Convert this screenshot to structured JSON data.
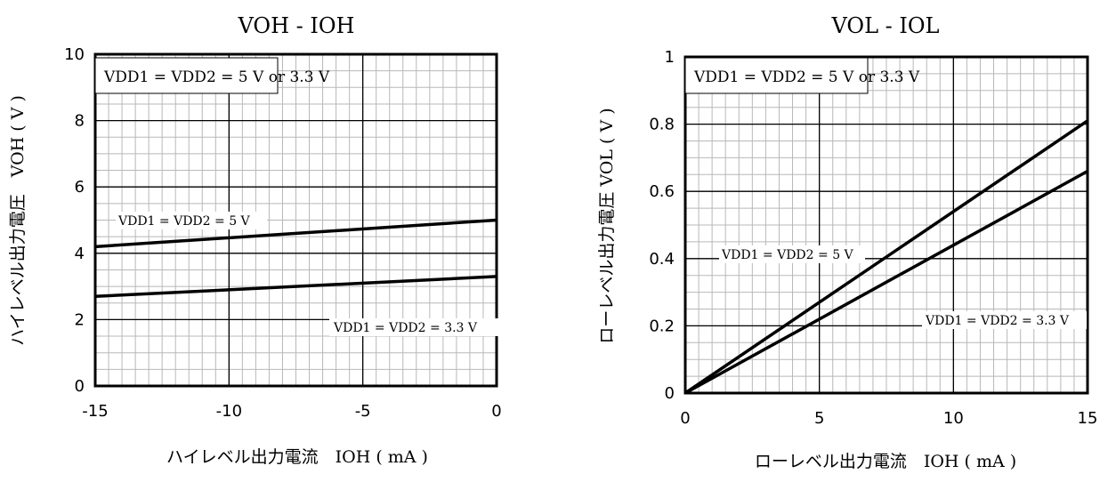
{
  "chart_data": [
    {
      "type": "line",
      "title": "VOH - IOH",
      "xlabel": "ハイレベル出力電流　IOH ( mA )",
      "ylabel": "ハイレベル出力電圧　VOH ( V )",
      "xlim": [
        -15,
        0
      ],
      "ylim": [
        0,
        10
      ],
      "x_ticks": [
        "-15",
        "-10",
        "-5",
        "0"
      ],
      "y_ticks": [
        "0",
        "2",
        "4",
        "6",
        "8",
        "10"
      ],
      "grid": true,
      "condition_box": "VDD1 = VDD2 = 5 V or 3.3 V",
      "series": [
        {
          "name": "VDD1 = VDD2 = 5 V",
          "x": [
            -15,
            0
          ],
          "y": [
            4.2,
            5.0
          ]
        },
        {
          "name": "VDD1 = VDD2 = 3.3 V",
          "x": [
            -15,
            0
          ],
          "y": [
            2.7,
            3.3
          ]
        }
      ]
    },
    {
      "type": "line",
      "title": "VOL - IOL",
      "xlabel": "ローレベル出力電流　IOH ( mA )",
      "ylabel": "ローレベル出力電圧 VOL ( V )",
      "xlim": [
        0,
        15
      ],
      "ylim": [
        0,
        1
      ],
      "x_ticks": [
        "0",
        "5",
        "10",
        "15"
      ],
      "y_ticks": [
        "0",
        "0.2",
        "0.4",
        "0.6",
        "0.8",
        "1"
      ],
      "grid": true,
      "condition_box": "VDD1 = VDD2 = 5 V or 3.3 V",
      "series": [
        {
          "name": "VDD1 = VDD2 = 5 V",
          "x": [
            0,
            15
          ],
          "y": [
            0,
            0.81
          ]
        },
        {
          "name": "VDD1 = VDD2 = 3.3 V",
          "x": [
            0,
            15
          ],
          "y": [
            0,
            0.66
          ]
        }
      ]
    }
  ]
}
